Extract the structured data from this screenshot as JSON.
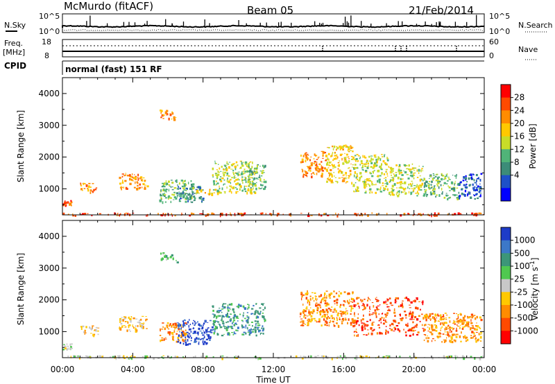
{
  "header": {
    "station": "McMurdo (fitACF)",
    "beam": "Beam 05",
    "date": "21/Feb/2014"
  },
  "small_panels": {
    "nsky_label": "N.Sky",
    "nsearch_label": "N.Search",
    "nsky_ticks": [
      "10^5",
      "10^0"
    ],
    "nsearch_ticks": [
      "10^5",
      "10^0"
    ],
    "freq_label": "Freq.",
    "freq_unit": "[MHz]",
    "freq_ticks": [
      "18",
      "8"
    ],
    "nave_label": "Nave",
    "nave_ticks": [
      "60",
      "0"
    ],
    "cpid_label": "CPID",
    "cpid_text": "normal (fast) 151 RF"
  },
  "x_axis": {
    "label": "Time UT",
    "ticks": [
      "00:00",
      "04:00",
      "08:00",
      "12:00",
      "16:00",
      "20:00",
      "00:00"
    ]
  },
  "chart_data": [
    {
      "type": "heatmap",
      "panel": "power",
      "ylabel": "Slant Range [km]",
      "yticks": [
        "4000",
        "3000",
        "2000",
        "1000"
      ],
      "ylim": [
        180,
        4500
      ],
      "xlim": [
        0,
        24
      ],
      "colorbar_label": "Power [dB]",
      "colorbar_ticks": [
        "28",
        "24",
        "20",
        "16",
        "12",
        "8",
        "4"
      ],
      "colorbar_colors": [
        "#ff0000",
        "#ff4a00",
        "#ff8c00",
        "#ffc800",
        "#c8dc28",
        "#50b478",
        "#3c8c78",
        "#1e50c8",
        "#0000ff"
      ],
      "regions": [
        {
          "t0": 0.0,
          "t1": 0.5,
          "r0": 450,
          "r1": 650,
          "level": 1
        },
        {
          "t0": 1.0,
          "t1": 2.0,
          "r0": 900,
          "r1": 1200,
          "level": 2
        },
        {
          "t0": 3.2,
          "t1": 4.8,
          "r0": 1000,
          "r1": 1500,
          "level": 2
        },
        {
          "t0": 5.5,
          "t1": 7.5,
          "r0": 600,
          "r1": 1300,
          "level": 5
        },
        {
          "t0": 6.5,
          "t1": 8.0,
          "r0": 600,
          "r1": 1100,
          "level": 6
        },
        {
          "t0": 7.5,
          "t1": 9.0,
          "r0": 850,
          "r1": 1000,
          "level": 3
        },
        {
          "t0": 8.5,
          "t1": 11.0,
          "r0": 900,
          "r1": 1900,
          "level": 4
        },
        {
          "t0": 10.5,
          "t1": 11.5,
          "r0": 1000,
          "r1": 1800,
          "level": 5
        },
        {
          "t0": 13.5,
          "t1": 15.0,
          "r0": 1400,
          "r1": 2200,
          "level": 2
        },
        {
          "t0": 15.0,
          "t1": 16.5,
          "r0": 1200,
          "r1": 2400,
          "level": 3
        },
        {
          "t0": 16.5,
          "t1": 18.5,
          "r0": 900,
          "r1": 2100,
          "level": 4
        },
        {
          "t0": 18.5,
          "t1": 20.5,
          "r0": 800,
          "r1": 1800,
          "level": 4
        },
        {
          "t0": 20.5,
          "t1": 22.5,
          "r0": 700,
          "r1": 1500,
          "level": 5
        },
        {
          "t0": 22.5,
          "t1": 23.8,
          "r0": 700,
          "r1": 1500,
          "level": 7
        },
        {
          "t0": 5.5,
          "t1": 6.5,
          "r0": 3200,
          "r1": 3500,
          "level": 2
        },
        {
          "t0": 0.0,
          "t1": 24.0,
          "r0": 180,
          "r1": 260,
          "level": 1
        }
      ]
    },
    {
      "type": "heatmap",
      "panel": "velocity",
      "ylabel": "Slant Range [km]",
      "yticks": [
        "4000",
        "3000",
        "2000",
        "1000"
      ],
      "ylim": [
        180,
        4500
      ],
      "xlim": [
        0,
        24
      ],
      "colorbar_label": "Velocity [m s^-1]",
      "colorbar_ticks": [
        "1000",
        "500",
        "100",
        "25",
        "-25",
        "-100",
        "-500",
        "-1000"
      ],
      "colorbar_colors": [
        "#1e3cc8",
        "#3c78c8",
        "#3c9678",
        "#50c850",
        "#c8c8c8",
        "#ffc800",
        "#ff8c00",
        "#ff4a00",
        "#ff0000"
      ],
      "regions": [
        {
          "t0": 0.0,
          "t1": 0.5,
          "r0": 450,
          "r1": 650,
          "level": 4
        },
        {
          "t0": 1.0,
          "t1": 2.0,
          "r0": 900,
          "r1": 1200,
          "level": 5
        },
        {
          "t0": 3.2,
          "t1": 4.8,
          "r0": 1000,
          "r1": 1500,
          "level": 5
        },
        {
          "t0": 5.5,
          "t1": 7.0,
          "r0": 700,
          "r1": 1300,
          "level": 6
        },
        {
          "t0": 6.5,
          "t1": 8.5,
          "r0": 600,
          "r1": 1400,
          "level": 0
        },
        {
          "t0": 8.5,
          "t1": 11.5,
          "r0": 900,
          "r1": 1900,
          "level": 2
        },
        {
          "t0": 13.5,
          "t1": 16.5,
          "r0": 1200,
          "r1": 2300,
          "level": 6
        },
        {
          "t0": 16.5,
          "t1": 20.5,
          "r0": 900,
          "r1": 2100,
          "level": 7
        },
        {
          "t0": 20.5,
          "t1": 23.8,
          "r0": 700,
          "r1": 1600,
          "level": 6
        },
        {
          "t0": 5.5,
          "t1": 6.5,
          "r0": 3200,
          "r1": 3500,
          "level": 3
        },
        {
          "t0": 0.0,
          "t1": 24.0,
          "r0": 180,
          "r1": 260,
          "level": 4
        }
      ]
    }
  ]
}
